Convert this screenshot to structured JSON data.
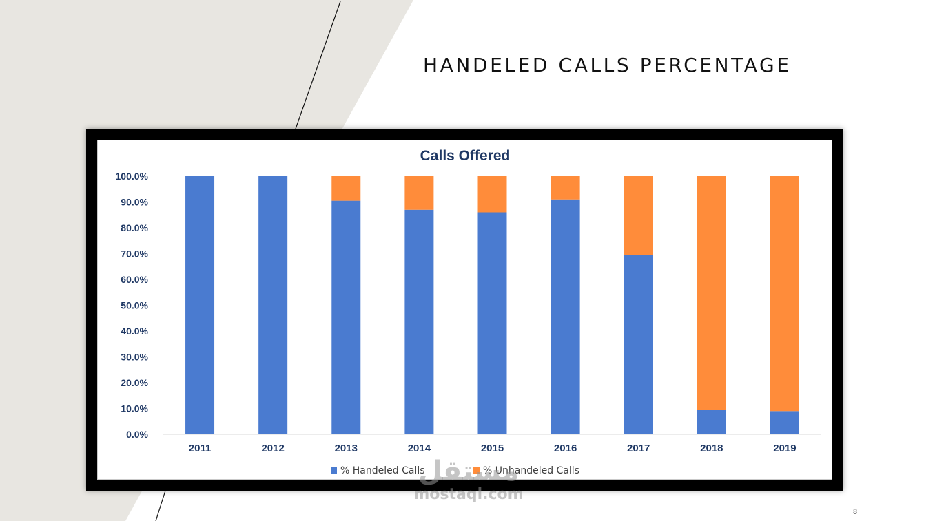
{
  "slide": {
    "title": "HANDELED CALLS PERCENTAGE",
    "page_number": "8",
    "background_shape_color": "#e8e6e1",
    "line_color": "#111111"
  },
  "watermark": {
    "arabic": "مستقل",
    "latin": "mostaql.com"
  },
  "chart_data": {
    "type": "bar",
    "stacked": true,
    "title": "Calls Offered",
    "categories": [
      "2011",
      "2012",
      "2013",
      "2014",
      "2015",
      "2016",
      "2017",
      "2018",
      "2019"
    ],
    "series": [
      {
        "name": "% Handeled Calls",
        "color": "#4a7bd0",
        "values": [
          100,
          100,
          90.5,
          87.0,
          86.0,
          91.0,
          69.5,
          9.5,
          9.0
        ]
      },
      {
        "name": "% Unhandeled Calls",
        "color": "#ff8c3a",
        "values": [
          0,
          0,
          9.5,
          13.0,
          14.0,
          9.0,
          30.5,
          90.5,
          91.0
        ]
      }
    ],
    "ylim": [
      0,
      100
    ],
    "yticks": [
      "0.0%",
      "10.0%",
      "20.0%",
      "30.0%",
      "40.0%",
      "50.0%",
      "60.0%",
      "70.0%",
      "80.0%",
      "90.0%",
      "100.0%"
    ],
    "ytick_values": [
      0,
      10,
      20,
      30,
      40,
      50,
      60,
      70,
      80,
      90,
      100
    ],
    "xlabel": "",
    "ylabel": "",
    "grid": false,
    "legend_position": "bottom",
    "title_color": "#1f3864",
    "tick_color": "#1f3864"
  }
}
